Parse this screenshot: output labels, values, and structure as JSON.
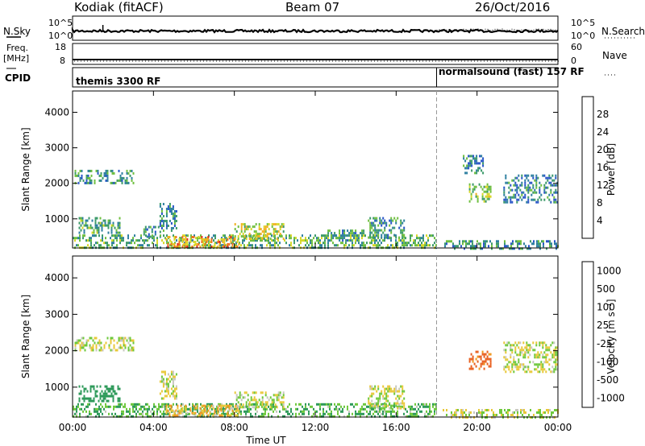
{
  "header": {
    "station": "Kodiak (fitACF)",
    "beam": "Beam 07",
    "date": "26/Oct/2016"
  },
  "sky_panel": {
    "label": "N.Sky",
    "right_label": "N.Search",
    "left_ticks": [
      "10^5",
      "10^0"
    ],
    "right_ticks": [
      "10^5",
      "10^0"
    ]
  },
  "freq_panel": {
    "label_line1": "Freq.",
    "label_line2": "[MHz]",
    "right_label": "Nave",
    "left_ticks": [
      "18",
      "8"
    ],
    "right_ticks": [
      "60",
      "0"
    ]
  },
  "cpid_panel": {
    "label": "CPID",
    "mode1": "themis 3300 RF",
    "mode2": "normalsound (fast) 157 RF",
    "mode_change_hour": 18.0
  },
  "chart_data": [
    {
      "type": "heatmap",
      "panel": "power",
      "ylabel": "Slant Range [km]",
      "xlabel": "Time UT",
      "x_ticks": [
        "00:00",
        "04:00",
        "08:00",
        "12:00",
        "16:00",
        "20:00",
        "00:00"
      ],
      "xlim_hours": [
        0,
        24
      ],
      "y_ticks": [
        1000,
        2000,
        3000,
        4000
      ],
      "ylim": [
        180,
        4600
      ],
      "colorbar": {
        "label": "Power [dB]",
        "ticks": [
          "4",
          "8",
          "12",
          "16",
          "20",
          "24",
          "28"
        ],
        "colors": [
          "#1a1ae6",
          "#2855c8",
          "#2e7fa0",
          "#3c9a6a",
          "#6fbf3f",
          "#d8d828",
          "#f0b020",
          "#f07020",
          "#e03020",
          "#e01818"
        ]
      },
      "regions": [
        {
          "t0": 0.1,
          "t1": 3.0,
          "r0": 2020,
          "r1": 2380,
          "value": 10
        },
        {
          "t0": 0.3,
          "t1": 2.3,
          "r0": 620,
          "r1": 1050,
          "value": 11
        },
        {
          "t0": 3.5,
          "t1": 4.3,
          "r0": 500,
          "r1": 800,
          "value": 8
        },
        {
          "t0": 4.3,
          "t1": 5.1,
          "r0": 700,
          "r1": 1450,
          "value": 8
        },
        {
          "t0": 0.0,
          "t1": 18.0,
          "r0": 190,
          "r1": 560,
          "value": 12
        },
        {
          "t0": 4.6,
          "t1": 8.2,
          "r0": 230,
          "r1": 520,
          "value": 20
        },
        {
          "t0": 8.0,
          "t1": 10.4,
          "r0": 430,
          "r1": 880,
          "value": 16
        },
        {
          "t0": 12.6,
          "t1": 14.4,
          "r0": 400,
          "r1": 700,
          "value": 10
        },
        {
          "t0": 14.6,
          "t1": 16.4,
          "r0": 450,
          "r1": 1050,
          "value": 9
        },
        {
          "t0": 18.3,
          "t1": 24.0,
          "r0": 190,
          "r1": 400,
          "value": 9
        },
        {
          "t0": 19.6,
          "t1": 20.7,
          "r0": 1480,
          "r1": 2000,
          "value": 14
        },
        {
          "t0": 21.3,
          "t1": 24.0,
          "r0": 1450,
          "r1": 2250,
          "value": 8
        },
        {
          "t0": 19.3,
          "t1": 20.3,
          "r0": 2300,
          "r1": 2800,
          "value": 8
        }
      ]
    },
    {
      "type": "heatmap",
      "panel": "velocity",
      "ylabel": "Slant Range [km]",
      "xlabel": "Time UT",
      "x_ticks": [
        "00:00",
        "04:00",
        "08:00",
        "12:00",
        "16:00",
        "20:00",
        "00:00"
      ],
      "xlim_hours": [
        0,
        24
      ],
      "y_ticks": [
        1000,
        2000,
        3000,
        4000
      ],
      "ylim": [
        180,
        4600
      ],
      "colorbar": {
        "label": "Velocity [m s⁻¹]",
        "ticks": [
          "1000",
          "500",
          "100",
          "25",
          "-25",
          "-100",
          "-500",
          "-1000"
        ],
        "colors": [
          "#2a3cc8",
          "#2a6eb0",
          "#2e9a5a",
          "#6ec83c",
          "#c8c8c0",
          "#e8c838",
          "#f09820",
          "#e86020",
          "#e01818"
        ]
      },
      "regions": [
        {
          "t0": 0.1,
          "t1": 3.0,
          "r0": 2020,
          "r1": 2380,
          "value": 0
        },
        {
          "t0": 0.3,
          "t1": 2.3,
          "r0": 620,
          "r1": 1050,
          "value": 150
        },
        {
          "t0": 4.3,
          "t1": 5.1,
          "r0": 700,
          "r1": 1450,
          "value": 0
        },
        {
          "t0": 0.0,
          "t1": 18.0,
          "r0": 190,
          "r1": 560,
          "value": 60
        },
        {
          "t0": 4.6,
          "t1": 8.2,
          "r0": 230,
          "r1": 520,
          "value": -60
        },
        {
          "t0": 8.0,
          "t1": 10.4,
          "r0": 430,
          "r1": 880,
          "value": 0
        },
        {
          "t0": 14.6,
          "t1": 16.4,
          "r0": 450,
          "r1": 1050,
          "value": 0
        },
        {
          "t0": 18.3,
          "t1": 24.0,
          "r0": 190,
          "r1": 400,
          "value": 0
        },
        {
          "t0": 19.6,
          "t1": 20.7,
          "r0": 1480,
          "r1": 2000,
          "value": -300
        },
        {
          "t0": 21.3,
          "t1": 24.0,
          "r0": 1450,
          "r1": 2250,
          "value": 0
        }
      ]
    }
  ]
}
